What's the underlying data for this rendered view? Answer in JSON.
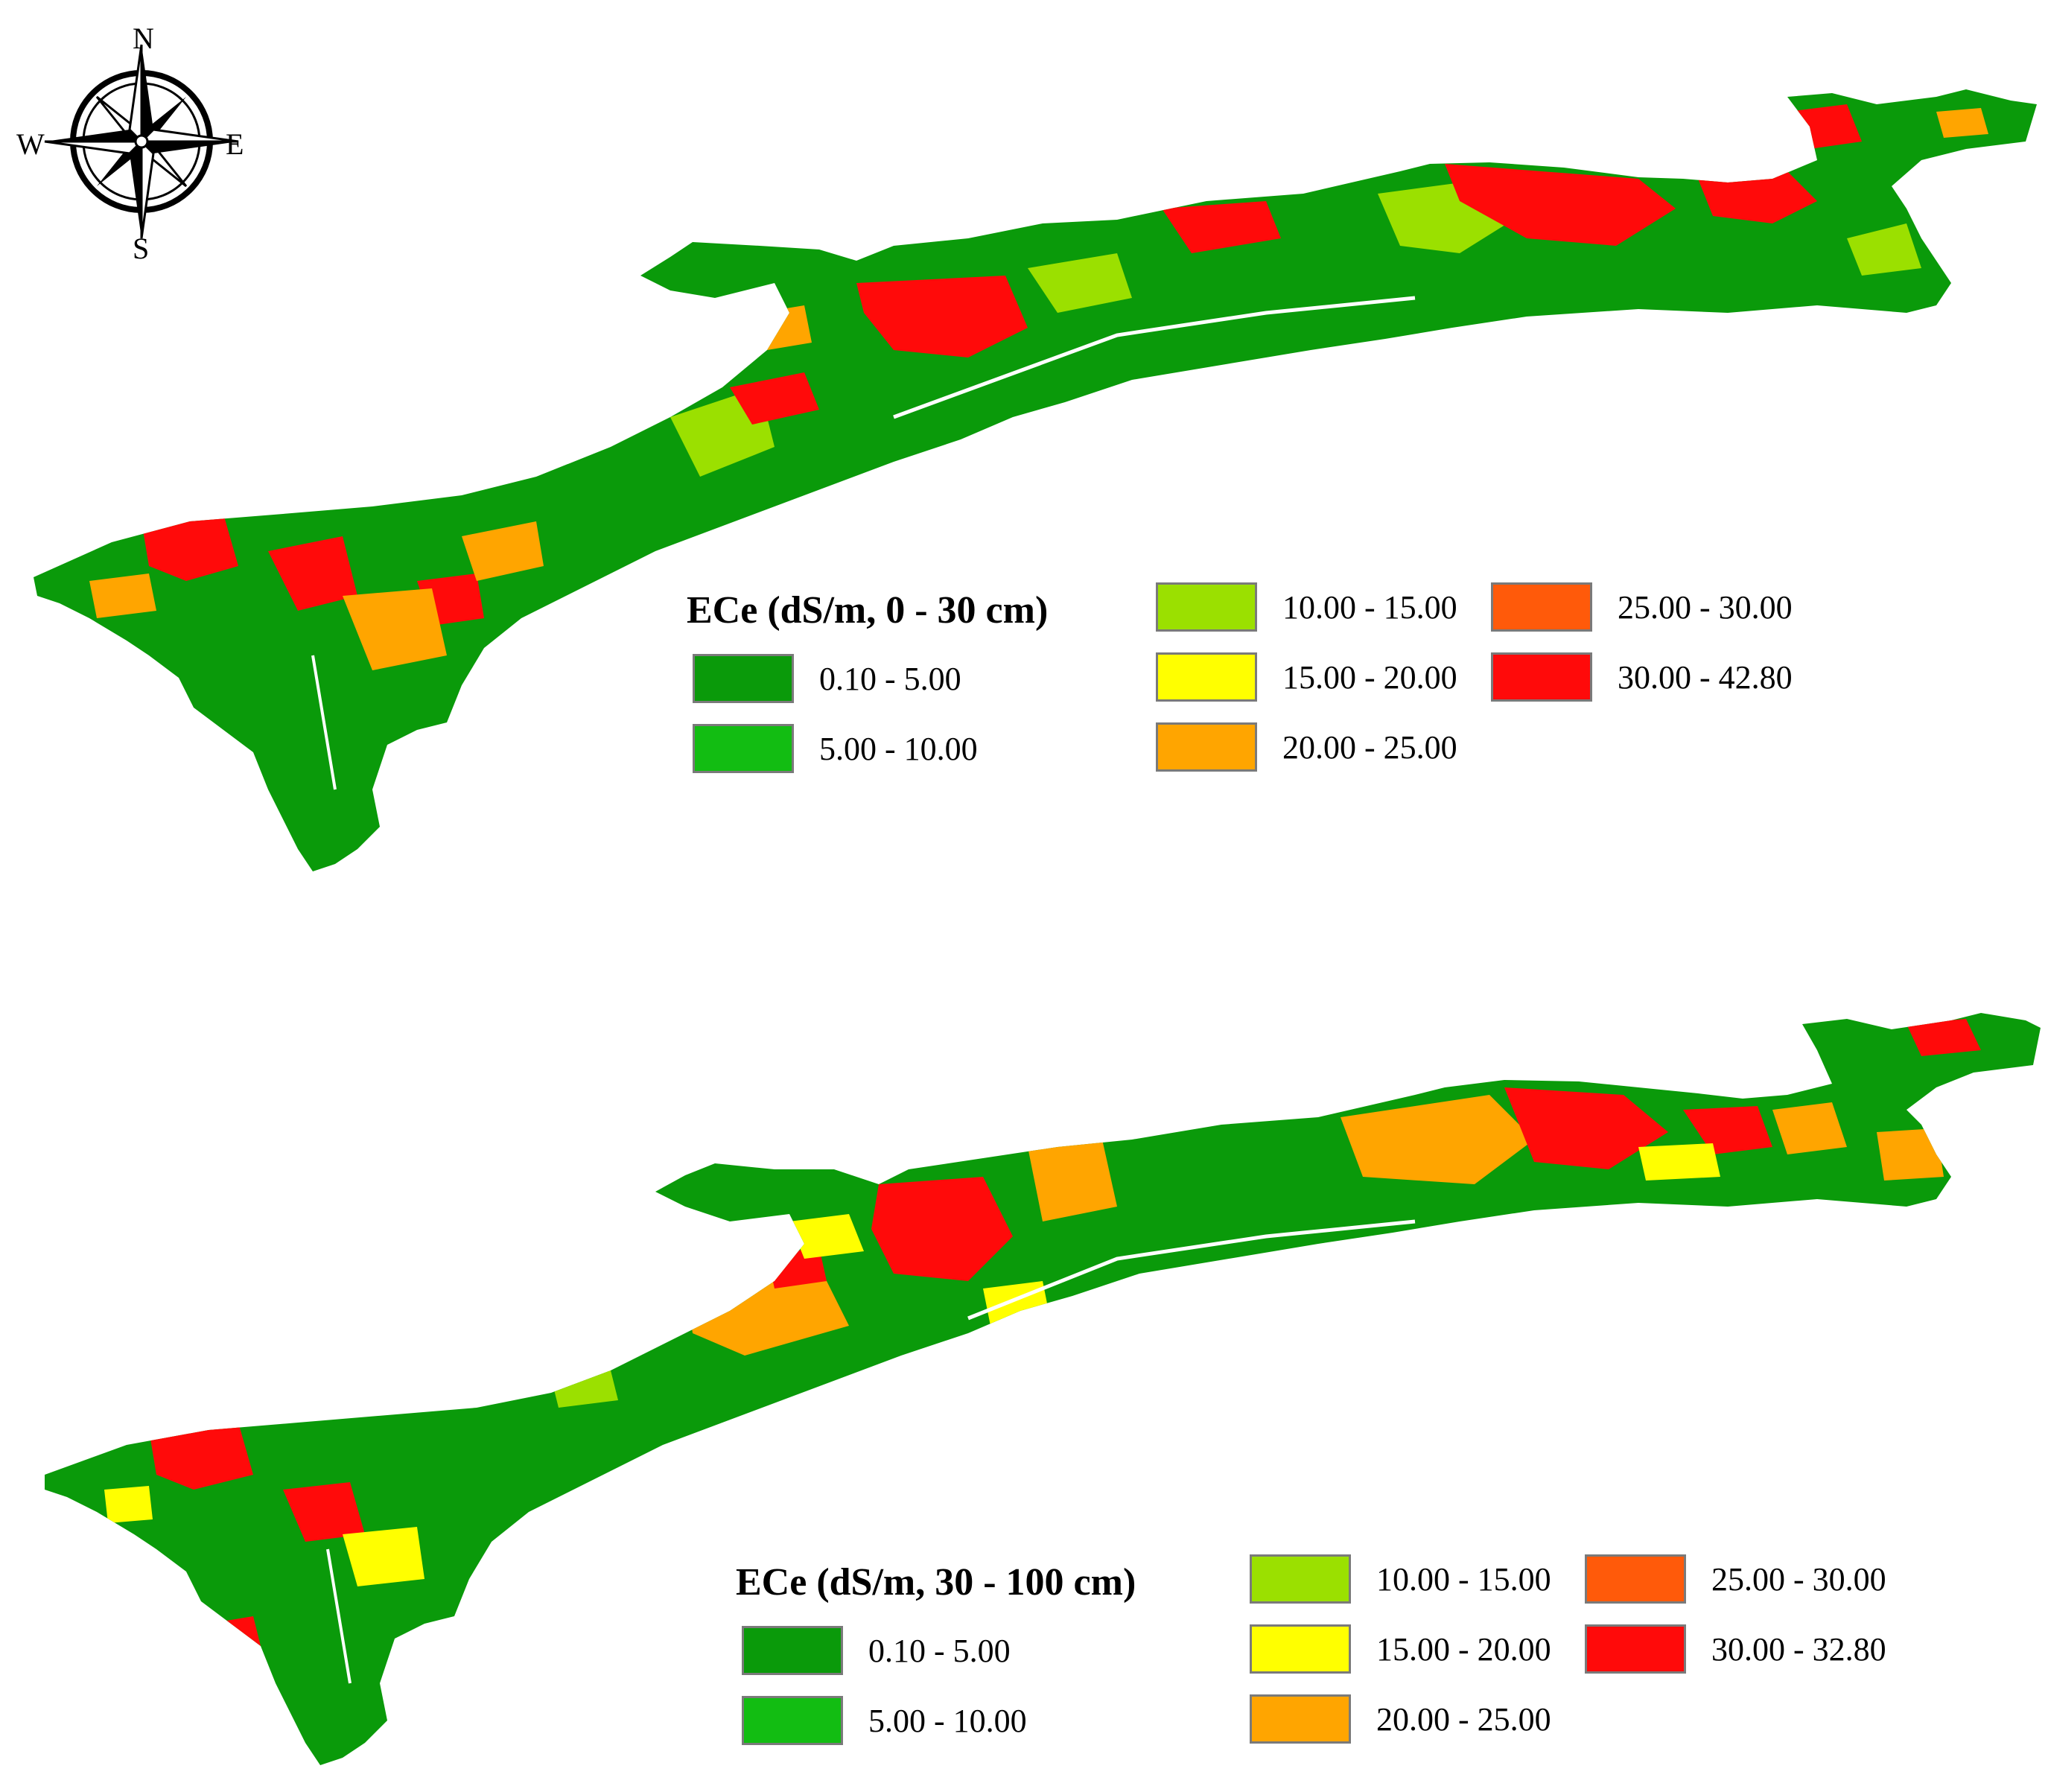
{
  "compass": {
    "north": "N",
    "south": "S",
    "east": "E",
    "west": "W"
  },
  "classes": {
    "c1": {
      "color": "#0a9a0a"
    },
    "c2": {
      "color": "#12bd12"
    },
    "c3": {
      "color": "#9be000"
    },
    "c4": {
      "color": "#ffff00"
    },
    "c5": {
      "color": "#ffa500"
    },
    "c6": {
      "color": "#ff5a0a"
    },
    "c7": {
      "color": "#ff0a0a"
    }
  },
  "maps": [
    {
      "legend": {
        "title": "ECe (dS/m, 0 - 30 cm)",
        "items": [
          {
            "label": "0.10 - 5.00",
            "color": "#0a9a0a"
          },
          {
            "label": "5.00 - 10.00",
            "color": "#12bd12"
          },
          {
            "label": "10.00 - 15.00",
            "color": "#9be000"
          },
          {
            "label": "15.00 - 20.00",
            "color": "#ffff00"
          },
          {
            "label": "20.00 - 25.00",
            "color": "#ffa500"
          },
          {
            "label": "25.00 - 30.00",
            "color": "#ff5a0a"
          },
          {
            "label": "30.00 - 42.80",
            "color": "#ff0a0a"
          }
        ]
      }
    },
    {
      "legend": {
        "title": "ECe (dS/m, 30 - 100 cm)",
        "items": [
          {
            "label": "0.10 - 5.00",
            "color": "#0a9a0a"
          },
          {
            "label": "5.00 - 10.00",
            "color": "#12bd12"
          },
          {
            "label": "10.00 - 15.00",
            "color": "#9be000"
          },
          {
            "label": "15.00 - 20.00",
            "color": "#ffff00"
          },
          {
            "label": "20.00 - 25.00",
            "color": "#ffa500"
          },
          {
            "label": "25.00 - 30.00",
            "color": "#ff5a0a"
          },
          {
            "label": "30.00 - 32.80",
            "color": "#ff0a0a"
          }
        ]
      }
    }
  ]
}
